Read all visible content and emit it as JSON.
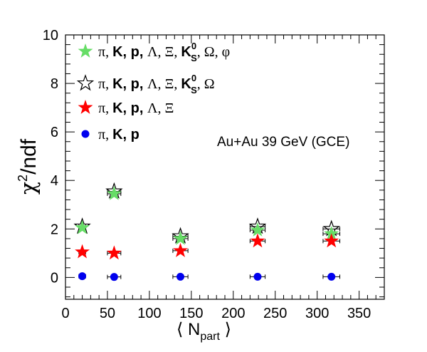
{
  "chart_data": {
    "type": "scatter",
    "title": "",
    "annotation": "Au+Au 39 GeV (GCE)",
    "xlabel": {
      "prefix": "⟨ N",
      "sub": "part",
      "suffix": " ⟩"
    },
    "ylabel": {
      "base": "χ",
      "sup": "2",
      "suffix": "/ndf"
    },
    "xlim": [
      0,
      380
    ],
    "ylim": [
      -0.9,
      10
    ],
    "x_ticks": [
      0,
      50,
      100,
      150,
      200,
      250,
      300,
      350
    ],
    "y_ticks": [
      0,
      2,
      4,
      6,
      8,
      10
    ],
    "x": [
      20,
      58,
      137,
      229,
      317
    ],
    "x_err": [
      4,
      8,
      9,
      9,
      10
    ],
    "series": [
      {
        "name": "π, K, p, Λ, Ξ, K_S^0, Ω, φ",
        "marker": "star-filled",
        "color": "#66dd66",
        "values": [
          2.05,
          3.45,
          1.6,
          1.95,
          1.8
        ]
      },
      {
        "name": "π, K, p, Λ, Ξ, K_S^0, Ω",
        "marker": "star-open",
        "color": "#000000",
        "values": [
          2.1,
          3.55,
          1.7,
          2.1,
          2.0
        ]
      },
      {
        "name": "π, K, p, Λ, Ξ",
        "marker": "star-filled",
        "color": "#ff0000",
        "values": [
          1.05,
          1.0,
          1.1,
          1.5,
          1.5
        ]
      },
      {
        "name": "π, K, p",
        "marker": "circle",
        "color": "#0000ee",
        "values": [
          0.05,
          0.02,
          0.03,
          0.03,
          0.03
        ]
      }
    ],
    "legend": [
      {
        "sans": "π, ",
        "bold": "K, p, ",
        "serif": "Λ, Ξ, ",
        "bold2": "K",
        "sup": "0",
        "sub": "S",
        "tail": ", Ω, φ"
      },
      {
        "sans": "π, ",
        "bold": "K, p, ",
        "serif": "Λ, Ξ, ",
        "bold2": "K",
        "sup": "0",
        "sub": "S",
        "tail": ",  Ω"
      },
      {
        "sans": "π, ",
        "bold": "K, p, ",
        "serif": "Λ, Ξ",
        "bold2": "",
        "sup": "",
        "sub": "",
        "tail": ""
      },
      {
        "sans": "π, ",
        "bold": "K, p",
        "serif": "",
        "bold2": "",
        "sup": "",
        "sub": "",
        "tail": ""
      }
    ],
    "legend_position": "top-left",
    "grid": false
  }
}
